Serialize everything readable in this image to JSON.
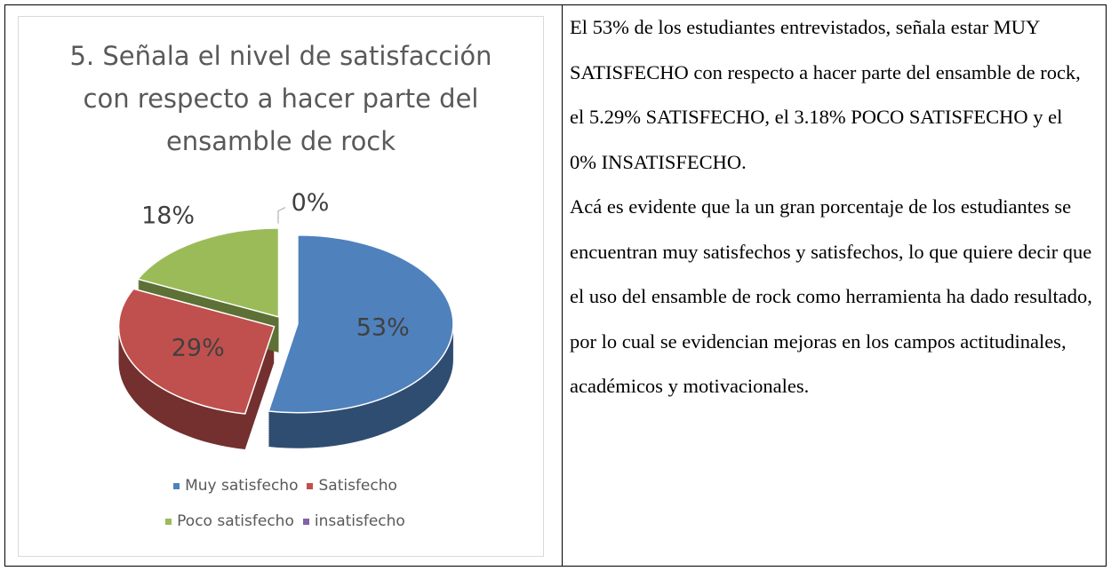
{
  "chart_data": {
    "type": "pie",
    "title": "5. Señala el nivel de satisfacción con respecto a hacer parte del ensamble de rock",
    "categories": [
      "Muy satisfecho",
      "Satisfecho",
      "Poco satisfecho",
      "insatisfecho"
    ],
    "values": [
      53,
      29,
      18,
      0
    ],
    "value_labels": [
      "53%",
      "29%",
      "18%",
      "0%"
    ],
    "colors": [
      "#4f81bd",
      "#c0504d",
      "#9bbb59",
      "#8064a2"
    ],
    "legend": "bottom"
  },
  "document": {
    "paragraphs": [
      "El 53%  de los estudiantes entrevistados, señala estar MUY SATISFECHO con respecto a hacer parte del ensamble de rock, el 5.29% SATISFECHO, el 3.18%  POCO SATISFECHO y el 0% INSATISFECHO.",
      "Acá es evidente que la un gran porcentaje de los estudiantes se encuentran muy satisfechos y satisfechos, lo que quiere decir que el uso del ensamble de rock como herramienta ha dado resultado, por lo cual se evidencian mejoras en los campos actitudinales, académicos y motivacionales."
    ]
  }
}
